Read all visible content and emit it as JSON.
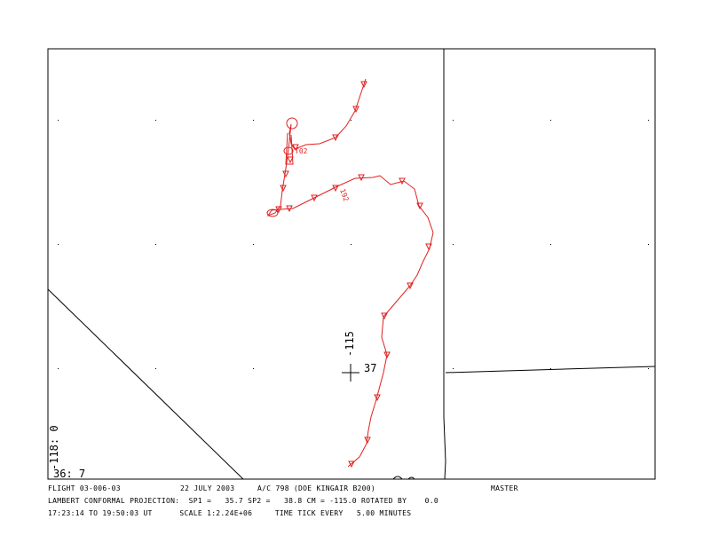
{
  "map": {
    "lon_label_left": "-118: 0",
    "lat_label_left": "36: 7",
    "lon_label_center": "-115",
    "lat_label_center": "37",
    "track_label_1": "T02",
    "track_label_2": "192"
  },
  "footer": {
    "flight": "FLIGHT 03-006-03",
    "date": "22 JULY 2003",
    "aircraft": "A/C 798 (DOE KINGAIR B200)",
    "status": "MASTER",
    "projection": "LAMBERT CONFORMAL PROJECTION:  SP1 =   35.7 SP2 =   38.8 CM = -115.0 ROTATED BY    0.0",
    "time_info": "17:23:14 TO 19:50:03 UT      SCALE 1:2.24E+06     TIME TICK EVERY   5.00 MINUTES"
  }
}
